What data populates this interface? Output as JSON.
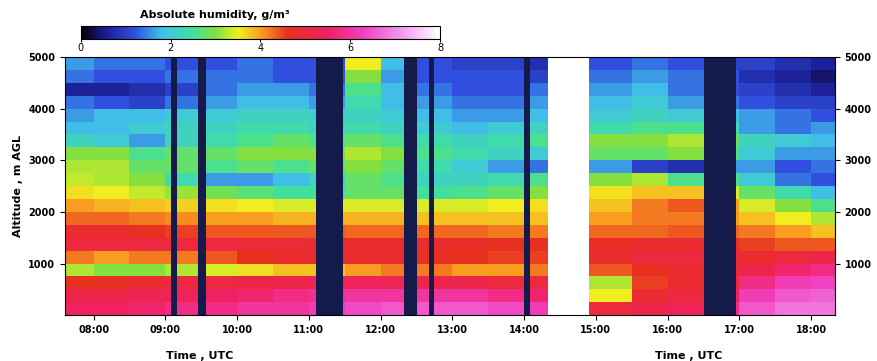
{
  "chart_data": {
    "type": "heatmap",
    "colorbar_title": "Absolute humidity, g/m³",
    "x_labels": [
      "Time , UTC",
      "Time , UTC"
    ],
    "y_label": "Altitude , m AGL",
    "xlim": [
      7.6,
      18.33
    ],
    "xticks": [
      {
        "value": 8,
        "label": "08:00"
      },
      {
        "value": 9,
        "label": "09:00"
      },
      {
        "value": 10,
        "label": "10:00"
      },
      {
        "value": 11,
        "label": "11:00"
      },
      {
        "value": 12,
        "label": "12:00"
      },
      {
        "value": 13,
        "label": "13:00"
      },
      {
        "value": 14,
        "label": "14:00"
      },
      {
        "value": 15,
        "label": "15:00"
      },
      {
        "value": 16,
        "label": "16:00"
      },
      {
        "value": 17,
        "label": "17:00"
      },
      {
        "value": 18,
        "label": "18:00"
      }
    ],
    "ylim": [
      0,
      5000
    ],
    "yticks": [
      1000,
      2000,
      3000,
      4000,
      5000
    ],
    "colorbar_range": [
      0,
      8
    ],
    "colorbar_ticks": [
      0,
      2,
      4,
      6,
      8
    ],
    "x_edges": [
      7.6,
      8.0,
      8.5,
      9.0,
      9.5,
      10.0,
      10.5,
      11.0,
      11.5,
      12.0,
      12.5,
      13.0,
      13.5,
      14.0,
      14.33,
      14.9,
      15.5,
      16.0,
      16.5,
      17.0,
      17.5,
      18.0,
      18.33
    ],
    "y_edges": [
      0,
      250,
      500,
      750,
      1000,
      1250,
      1500,
      1750,
      2000,
      2250,
      2500,
      2750,
      3000,
      3250,
      3500,
      3750,
      4000,
      4250,
      4500,
      4750,
      5000
    ],
    "no_data": [
      [
        9.08,
        9.16
      ],
      [
        9.45,
        9.56
      ],
      [
        11.1,
        11.47
      ],
      [
        12.33,
        12.5
      ],
      [
        12.68,
        12.75
      ],
      [
        14.0,
        14.08
      ],
      [
        16.5,
        16.95
      ]
    ],
    "cells": [
      [
        5.5,
        5.5,
        5.6,
        5.8,
        5.8,
        6.0,
        6.0,
        6.2,
        6.4,
        6.5,
        6.5,
        6.5,
        6.4,
        6.2,
        null,
        5.0,
        5.2,
        5.4,
        5.8,
        6.5,
        6.8,
        6.8
      ],
      [
        5.2,
        5.2,
        5.3,
        5.4,
        5.5,
        5.6,
        5.8,
        5.9,
        6.0,
        6.0,
        6.0,
        6.0,
        5.8,
        5.6,
        null,
        3.5,
        4.8,
        5.0,
        5.4,
        6.2,
        6.5,
        6.6
      ],
      [
        4.6,
        4.6,
        4.8,
        5.0,
        5.0,
        5.2,
        5.2,
        5.4,
        5.4,
        5.3,
        5.2,
        5.2,
        5.0,
        5.0,
        null,
        3.2,
        4.5,
        4.8,
        5.0,
        5.8,
        6.2,
        6.3
      ],
      [
        3.2,
        3.0,
        3.0,
        3.2,
        3.4,
        3.6,
        3.8,
        3.8,
        4.0,
        4.2,
        4.2,
        4.0,
        4.0,
        4.2,
        null,
        4.4,
        4.6,
        4.8,
        4.8,
        5.2,
        5.6,
        5.8
      ],
      [
        4.2,
        4.0,
        4.2,
        4.2,
        4.4,
        4.6,
        4.8,
        4.8,
        4.8,
        4.8,
        4.6,
        4.6,
        4.5,
        4.5,
        null,
        4.8,
        5.0,
        5.0,
        5.0,
        4.8,
        5.0,
        5.2
      ],
      [
        5.0,
        5.0,
        5.0,
        5.0,
        5.0,
        4.9,
        4.9,
        4.8,
        4.8,
        4.8,
        4.8,
        4.7,
        4.6,
        4.6,
        null,
        4.7,
        4.8,
        4.8,
        4.6,
        4.5,
        4.4,
        4.4
      ],
      [
        4.8,
        4.8,
        4.6,
        4.5,
        4.4,
        4.4,
        4.4,
        4.4,
        4.3,
        4.3,
        4.3,
        4.3,
        4.2,
        4.2,
        null,
        4.3,
        4.3,
        4.4,
        4.3,
        4.2,
        4.0,
        3.8
      ],
      [
        4.3,
        4.3,
        4.2,
        4.1,
        4.0,
        4.0,
        3.9,
        3.9,
        3.9,
        3.9,
        3.8,
        3.8,
        3.8,
        3.8,
        null,
        4.0,
        4.2,
        4.2,
        4.0,
        3.8,
        3.5,
        3.2
      ],
      [
        4.0,
        3.9,
        3.8,
        3.7,
        3.6,
        3.5,
        3.4,
        3.4,
        3.4,
        3.4,
        3.4,
        3.4,
        3.5,
        3.6,
        null,
        3.8,
        4.2,
        4.4,
        4.0,
        3.4,
        3.0,
        2.6
      ],
      [
        3.6,
        3.5,
        3.3,
        3.1,
        2.9,
        2.7,
        2.5,
        2.5,
        2.8,
        2.8,
        2.5,
        2.6,
        2.8,
        3.0,
        null,
        3.6,
        3.8,
        3.8,
        3.4,
        2.8,
        2.4,
        1.8
      ],
      [
        3.3,
        3.2,
        3.0,
        2.4,
        1.6,
        1.6,
        1.8,
        2.2,
        2.8,
        2.6,
        2.2,
        2.2,
        2.4,
        2.6,
        null,
        3.0,
        3.2,
        2.6,
        2.6,
        2.0,
        1.4,
        1.2
      ],
      [
        3.2,
        3.2,
        2.8,
        2.8,
        2.6,
        2.8,
        2.6,
        2.8,
        3.0,
        2.8,
        2.4,
        2.0,
        1.6,
        1.4,
        null,
        1.6,
        1.0,
        0.8,
        1.6,
        1.6,
        1.2,
        1.4
      ],
      [
        3.0,
        3.0,
        2.6,
        2.8,
        2.8,
        3.0,
        3.0,
        3.0,
        3.2,
        3.0,
        2.6,
        2.4,
        2.2,
        2.0,
        null,
        2.8,
        2.8,
        3.0,
        2.6,
        2.0,
        1.6,
        1.6
      ],
      [
        2.2,
        2.0,
        1.6,
        2.2,
        2.4,
        2.6,
        2.8,
        2.6,
        2.8,
        2.6,
        2.4,
        2.2,
        2.4,
        2.6,
        null,
        3.0,
        3.0,
        3.2,
        2.8,
        2.2,
        2.0,
        1.8
      ],
      [
        1.8,
        1.8,
        2.0,
        2.2,
        2.2,
        2.4,
        2.4,
        2.2,
        2.4,
        2.2,
        2.0,
        1.8,
        2.0,
        2.2,
        null,
        2.4,
        2.6,
        2.6,
        2.4,
        1.6,
        1.4,
        1.6
      ],
      [
        1.6,
        1.8,
        1.8,
        2.0,
        2.0,
        2.2,
        2.2,
        2.0,
        2.2,
        2.0,
        1.8,
        1.6,
        1.6,
        1.8,
        null,
        2.0,
        2.2,
        2.0,
        1.8,
        1.6,
        1.4,
        1.2
      ],
      [
        1.4,
        1.2,
        1.0,
        1.4,
        1.6,
        1.8,
        1.8,
        1.6,
        2.4,
        1.8,
        1.6,
        1.4,
        1.4,
        1.6,
        null,
        1.8,
        2.0,
        1.6,
        1.4,
        1.2,
        1.0,
        1.0
      ],
      [
        0.6,
        0.6,
        0.8,
        1.0,
        1.4,
        1.6,
        1.6,
        1.4,
        2.6,
        1.8,
        1.4,
        1.2,
        1.2,
        1.4,
        null,
        1.6,
        1.8,
        1.4,
        1.2,
        1.0,
        0.8,
        0.6
      ],
      [
        1.4,
        1.2,
        1.2,
        1.4,
        1.4,
        1.4,
        1.2,
        1.2,
        3.0,
        1.6,
        1.2,
        1.2,
        1.2,
        1.0,
        null,
        1.4,
        1.6,
        1.4,
        1.2,
        0.8,
        0.6,
        0.4
      ],
      [
        1.6,
        1.4,
        1.4,
        1.2,
        1.2,
        1.4,
        1.2,
        1.2,
        3.5,
        1.8,
        1.2,
        1.0,
        1.0,
        0.8,
        null,
        1.2,
        1.4,
        1.2,
        1.0,
        1.0,
        0.8,
        0.6
      ]
    ]
  }
}
